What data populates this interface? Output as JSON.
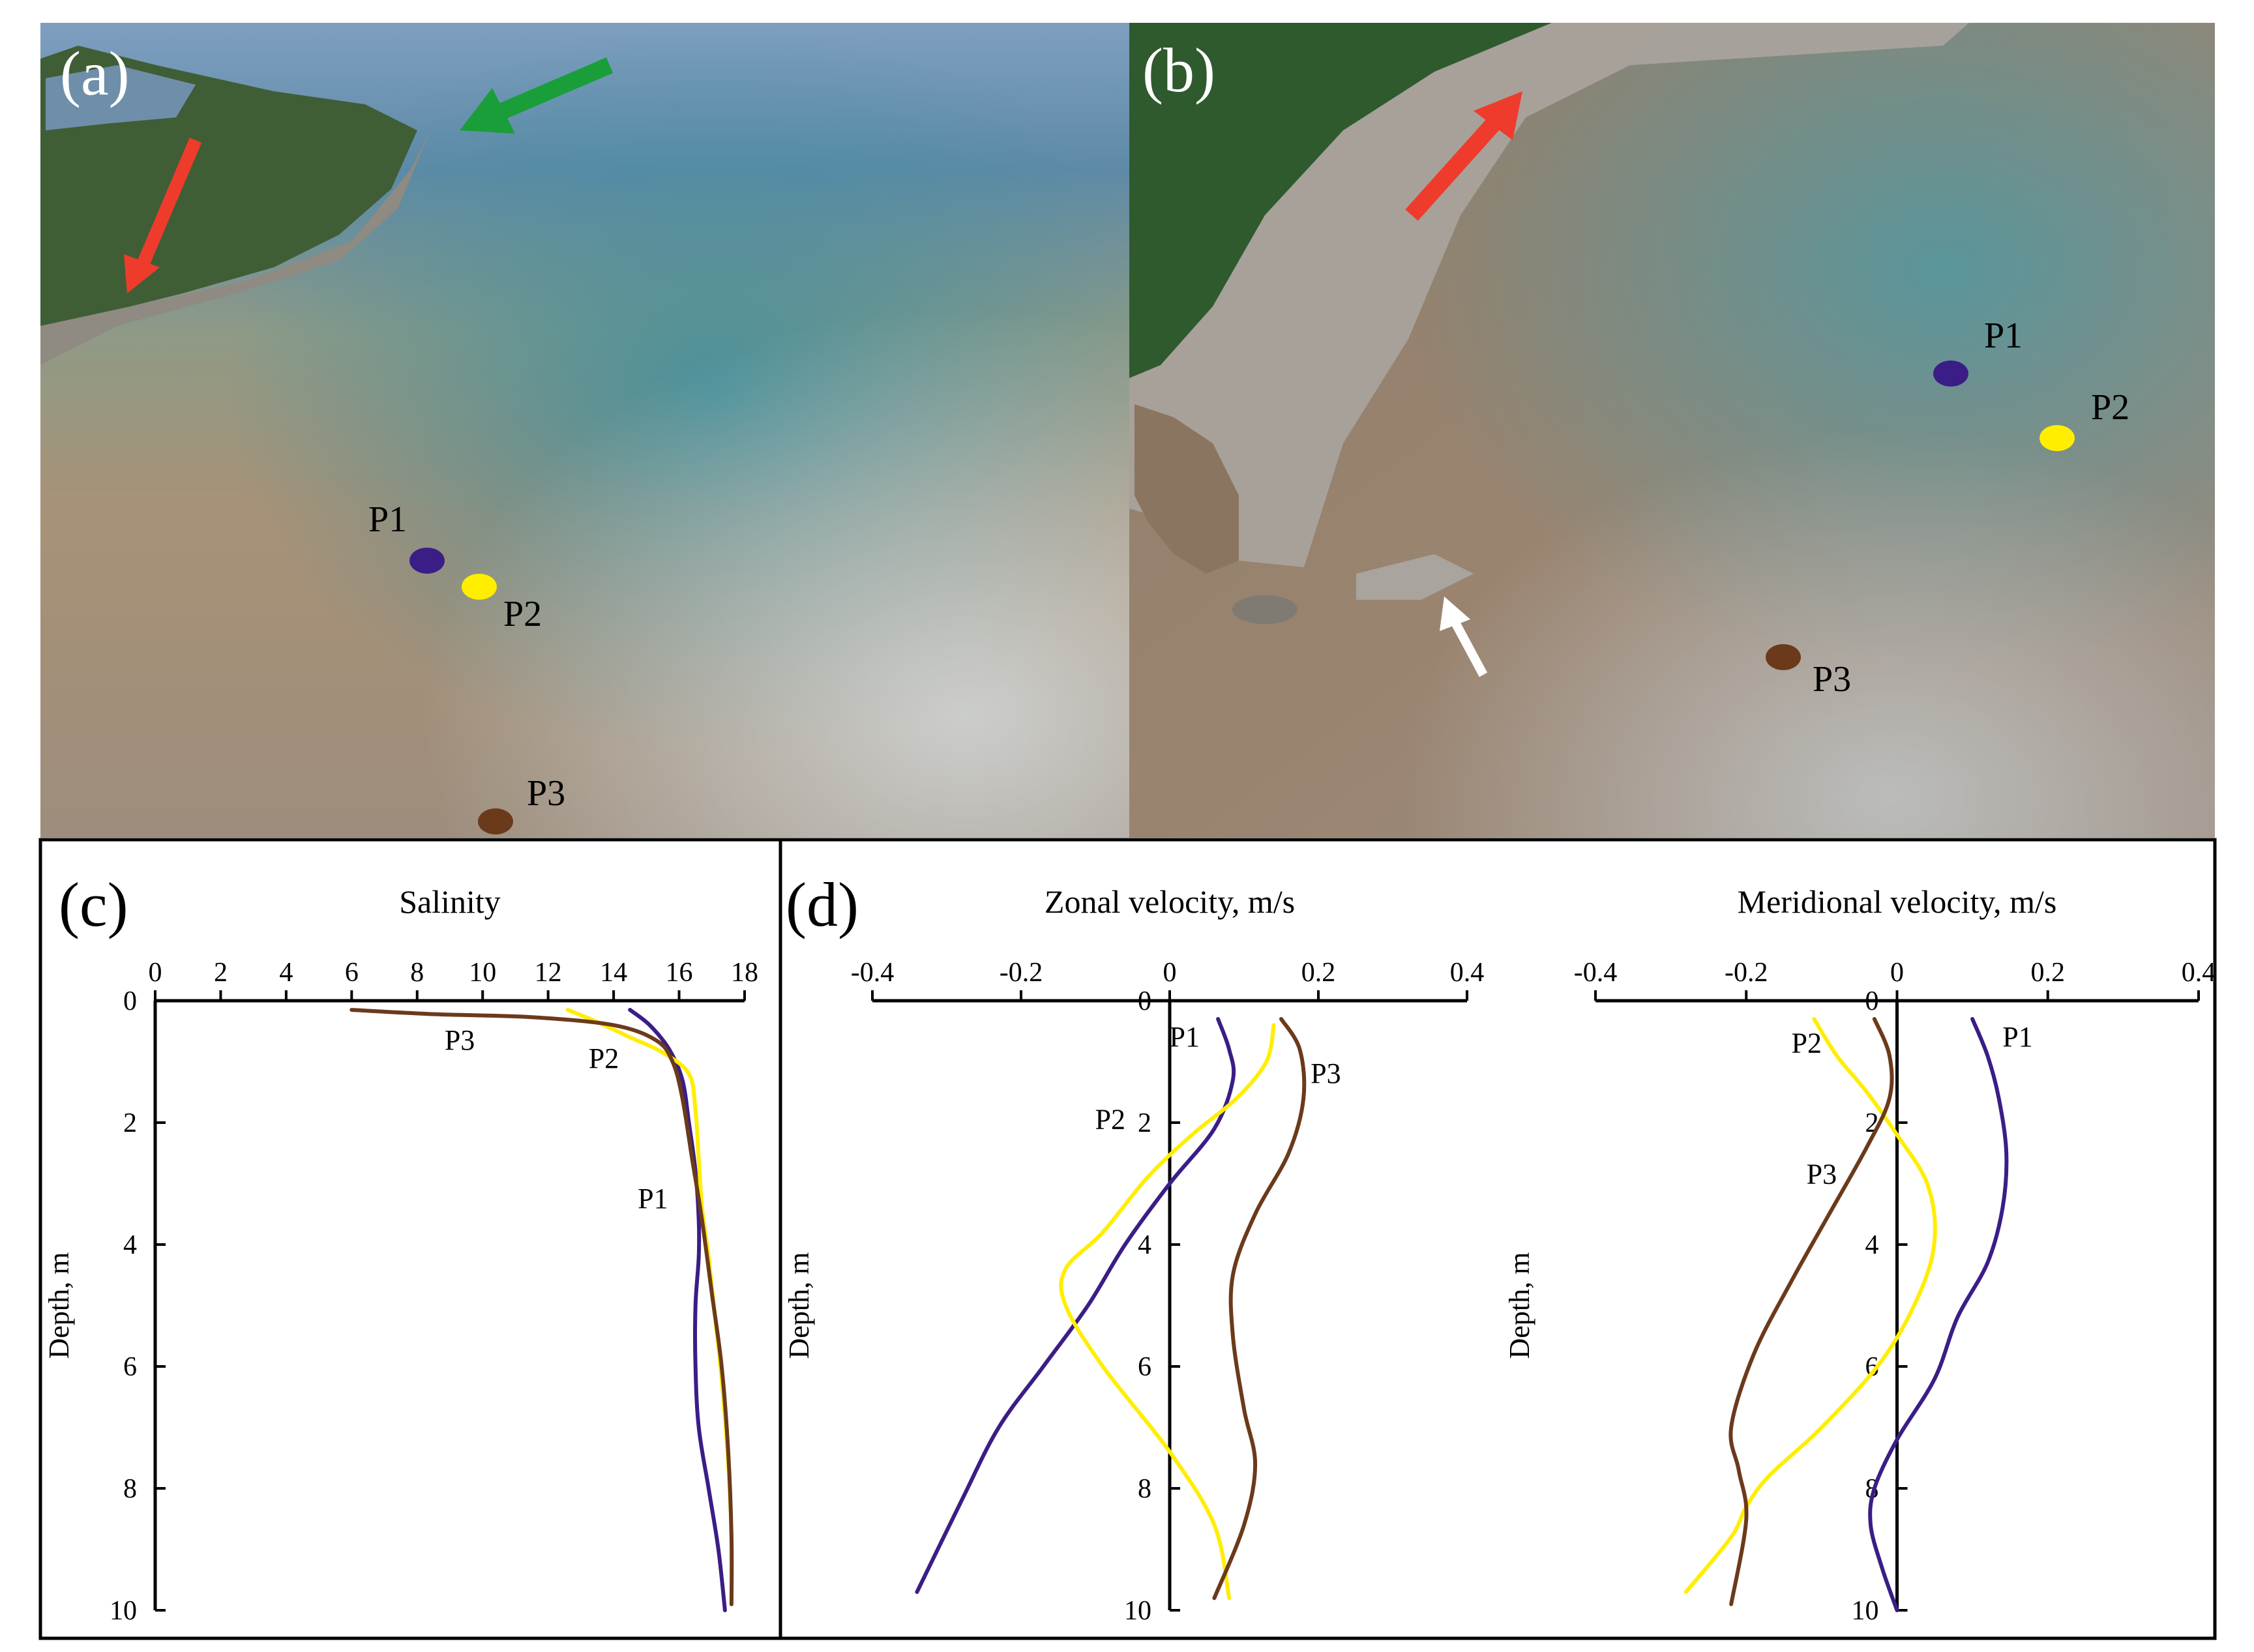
{
  "panels": {
    "a": {
      "letter": "(a)",
      "points": [
        "P1",
        "P2",
        "P3"
      ]
    },
    "b": {
      "letter": "(b)",
      "points": [
        "P1",
        "P2",
        "P3"
      ]
    },
    "c": {
      "letter": "(c)"
    },
    "d": {
      "letter": "(d)"
    }
  },
  "colors": {
    "P1": "#3b1d86",
    "P2": "#ffee00",
    "P3": "#6b3a1b",
    "red_arrow": "#ef3b2c",
    "green_arrow": "#1a9e3a",
    "white_arrow": "#ffffff"
  },
  "chart_data": [
    {
      "id": "c",
      "type": "line",
      "title": "Salinity",
      "xlabel": "Salinity",
      "ylabel": "Depth, m",
      "xlim": [
        0,
        18
      ],
      "ylim": [
        0,
        10
      ],
      "y_inverted": true,
      "xticks": [
        0,
        2,
        4,
        6,
        8,
        10,
        12,
        14,
        16,
        18
      ],
      "yticks": [
        0,
        2,
        4,
        6,
        8,
        10
      ],
      "series": [
        {
          "name": "P1",
          "x": [
            14.5,
            15.1,
            15.7,
            16.1,
            16.3,
            16.5,
            16.6,
            16.6,
            16.5,
            16.5,
            16.6,
            16.9,
            17.2,
            17.4
          ],
          "y": [
            0.15,
            0.4,
            0.8,
            1.3,
            2.0,
            2.8,
            3.6,
            4.2,
            5.0,
            6.0,
            7.0,
            8.0,
            9.0,
            10.0
          ]
        },
        {
          "name": "P2",
          "x": [
            12.6,
            13.5,
            14.5,
            15.5,
            16.3,
            16.5,
            16.6,
            16.7,
            16.9,
            17.1,
            17.3,
            17.5,
            17.6,
            17.6
          ],
          "y": [
            0.15,
            0.35,
            0.6,
            0.85,
            1.2,
            1.8,
            2.6,
            3.4,
            4.2,
            5.2,
            6.2,
            7.6,
            8.8,
            9.8
          ]
        },
        {
          "name": "P3",
          "x": [
            6.0,
            8.5,
            11.5,
            14.0,
            15.3,
            15.8,
            16.1,
            16.4,
            16.7,
            17.0,
            17.3,
            17.5,
            17.6,
            17.6
          ],
          "y": [
            0.15,
            0.22,
            0.27,
            0.4,
            0.65,
            1.0,
            1.6,
            2.6,
            3.6,
            4.8,
            6.0,
            7.4,
            8.8,
            9.9
          ]
        }
      ],
      "labels": [
        {
          "text": "P3",
          "x": 9.3,
          "y": 0.8
        },
        {
          "text": "P2",
          "x": 13.7,
          "y": 1.1
        },
        {
          "text": "P1",
          "x": 15.2,
          "y": 3.4
        }
      ]
    },
    {
      "id": "d_zonal",
      "type": "line",
      "title": "Zonal velocity, m/s",
      "xlabel": "Zonal velocity, m/s",
      "ylabel": "Depth, m",
      "xlim": [
        -0.4,
        0.4
      ],
      "ylim": [
        0,
        10
      ],
      "y_inverted": true,
      "xticks": [
        -0.4,
        -0.2,
        0,
        0.2,
        0.4
      ],
      "yticks": [
        0,
        2,
        4,
        6,
        8,
        10
      ],
      "series": [
        {
          "name": "P1",
          "x": [
            0.065,
            0.08,
            0.085,
            0.06,
            0.0,
            -0.06,
            -0.11,
            -0.17,
            -0.23,
            -0.28,
            -0.34
          ],
          "y": [
            0.3,
            0.8,
            1.3,
            2.1,
            3.0,
            4.0,
            5.0,
            6.0,
            7.0,
            8.2,
            9.7
          ]
        },
        {
          "name": "P2",
          "x": [
            0.14,
            0.13,
            0.09,
            0.03,
            -0.03,
            -0.09,
            -0.14,
            -0.14,
            -0.09,
            0.0,
            0.06,
            0.08
          ],
          "y": [
            0.4,
            1.0,
            1.6,
            2.2,
            2.9,
            3.8,
            4.4,
            5.0,
            6.0,
            7.4,
            8.6,
            9.8
          ]
        },
        {
          "name": "P3",
          "x": [
            0.15,
            0.175,
            0.18,
            0.16,
            0.115,
            0.085,
            0.085,
            0.1,
            0.115,
            0.1,
            0.06
          ],
          "y": [
            0.3,
            0.8,
            1.6,
            2.5,
            3.5,
            4.5,
            5.5,
            6.7,
            7.6,
            8.6,
            9.8
          ]
        }
      ],
      "labels": [
        {
          "text": "P1",
          "x": 0.02,
          "y": 0.75
        },
        {
          "text": "P3",
          "x": 0.21,
          "y": 1.35
        },
        {
          "text": "P2",
          "x": -0.08,
          "y": 2.1
        }
      ]
    },
    {
      "id": "d_meridional",
      "type": "line",
      "title": "Meridional velocity, m/s",
      "xlabel": "Meridional velocity, m/s",
      "ylabel": "Depth, m",
      "xlim": [
        -0.4,
        0.4
      ],
      "ylim": [
        0,
        10
      ],
      "y_inverted": true,
      "xticks": [
        -0.4,
        -0.2,
        0,
        0.2,
        0.4
      ],
      "yticks": [
        0,
        2,
        4,
        6,
        8,
        10
      ],
      "series": [
        {
          "name": "P1",
          "x": [
            0.1,
            0.12,
            0.135,
            0.145,
            0.14,
            0.12,
            0.08,
            0.05,
            0.0,
            -0.03,
            -0.035,
            -0.02,
            0.0
          ],
          "y": [
            0.3,
            0.9,
            1.6,
            2.5,
            3.4,
            4.3,
            5.2,
            6.2,
            7.2,
            8.0,
            8.6,
            9.3,
            10.0
          ]
        },
        {
          "name": "P2",
          "x": [
            -0.11,
            -0.08,
            -0.04,
            0.0,
            0.04,
            0.05,
            0.03,
            -0.02,
            -0.1,
            -0.17,
            -0.2,
            -0.22,
            -0.28
          ],
          "y": [
            0.3,
            0.9,
            1.5,
            2.2,
            3.0,
            3.9,
            4.8,
            5.9,
            7.0,
            7.8,
            8.3,
            8.8,
            9.7
          ]
        },
        {
          "name": "P3",
          "x": [
            -0.03,
            -0.01,
            -0.01,
            -0.04,
            -0.09,
            -0.14,
            -0.19,
            -0.22,
            -0.21,
            -0.2,
            -0.22
          ],
          "y": [
            0.3,
            0.9,
            1.6,
            2.4,
            3.5,
            4.6,
            5.8,
            7.0,
            7.7,
            8.5,
            9.9
          ]
        }
      ],
      "labels": [
        {
          "text": "P2",
          "x": -0.12,
          "y": 0.85
        },
        {
          "text": "P1",
          "x": 0.16,
          "y": 0.75
        },
        {
          "text": "P3",
          "x": -0.1,
          "y": 3.0
        }
      ]
    }
  ]
}
